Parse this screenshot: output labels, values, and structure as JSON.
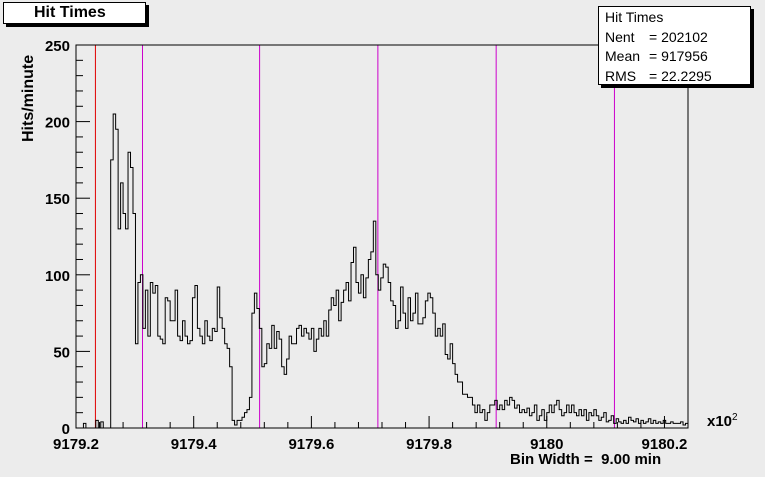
{
  "title": "Hit Times",
  "stats": {
    "name": "Hit Times",
    "rows": [
      {
        "key": "Nent",
        "value": "= 202102"
      },
      {
        "key": "Mean",
        "value": "= 917956"
      },
      {
        "key": "RMS",
        "value": "= 22.2295"
      }
    ]
  },
  "axis_note": {
    "x_scale": "x10",
    "x_exp": "2",
    "bin_width": "Bin Width =  9.00 min"
  },
  "chart_data": {
    "type": "histogram",
    "title": "Hit Times",
    "ylabel": "Hits/minute",
    "xlabel": "",
    "x_scale_factor": 100,
    "xlim": [
      9179.2,
      9180.24
    ],
    "ylim": [
      0,
      250
    ],
    "bin_width": 0.09,
    "x_ticks": [
      "9179.2",
      "9179.4",
      "9179.6",
      "9179.8",
      "9180",
      "9180.2"
    ],
    "y_ticks": [
      "0",
      "50",
      "100",
      "150",
      "200",
      "250"
    ],
    "x_tick_values": [
      9179.2,
      9179.4,
      9179.6,
      9179.8,
      9180.0,
      9180.2
    ],
    "y_tick_values": [
      0,
      50,
      100,
      150,
      200,
      250
    ],
    "vlines": [
      {
        "x": 9179.233,
        "color": "#e00000"
      },
      {
        "x": 9179.313,
        "color": "#cc00cc"
      },
      {
        "x": 9179.512,
        "color": "#cc00cc"
      },
      {
        "x": 9179.713,
        "color": "#cc00cc"
      },
      {
        "x": 9179.914,
        "color": "#cc00cc"
      },
      {
        "x": 9180.115,
        "color": "#cc00cc"
      }
    ],
    "x_start": 9179.2,
    "values": [
      0,
      0,
      0,
      3,
      0,
      0,
      0,
      0,
      5,
      0,
      4,
      0,
      0,
      0,
      175,
      205,
      195,
      130,
      160,
      140,
      130,
      180,
      170,
      140,
      55,
      95,
      100,
      65,
      90,
      60,
      95,
      88,
      93,
      60,
      58,
      55,
      85,
      83,
      70,
      70,
      90,
      60,
      57,
      70,
      60,
      55,
      57,
      85,
      93,
      65,
      60,
      55,
      70,
      60,
      57,
      65,
      63,
      92,
      72,
      65,
      55,
      52,
      40,
      5,
      2,
      5,
      5,
      7,
      10,
      12,
      20,
      75,
      88,
      78,
      65,
      40,
      42,
      55,
      52,
      67,
      52,
      63,
      58,
      40,
      35,
      45,
      60,
      55,
      55,
      65,
      67,
      60,
      65,
      62,
      58,
      65,
      50,
      58,
      65,
      60,
      70,
      60,
      77,
      85,
      80,
      90,
      70,
      82,
      90,
      95,
      83,
      108,
      118,
      95,
      88,
      100,
      85,
      98,
      110,
      115,
      135,
      100,
      90,
      98,
      107,
      105,
      95,
      83,
      80,
      65,
      70,
      92,
      75,
      65,
      85,
      70,
      75,
      88,
      68,
      68,
      72,
      83,
      88,
      85,
      75,
      60,
      65,
      60,
      68,
      48,
      45,
      55,
      42,
      35,
      30,
      30,
      22,
      22,
      20,
      20,
      15,
      10,
      15,
      10,
      12,
      5,
      10,
      15,
      15,
      18,
      12,
      15,
      12,
      18,
      15,
      20,
      18,
      13,
      15,
      10,
      12,
      10,
      13,
      8,
      10,
      15,
      5,
      8,
      12,
      5,
      10,
      15,
      10,
      15,
      18,
      12,
      8,
      10,
      15,
      10,
      15,
      10,
      8,
      12,
      8,
      12,
      5,
      10,
      8,
      12,
      8,
      5,
      7,
      10,
      4,
      5,
      8,
      3,
      6,
      4,
      3,
      5,
      3,
      7,
      5,
      4,
      6,
      3,
      5,
      3,
      4,
      6,
      3,
      5,
      3,
      4,
      3,
      5,
      3,
      3,
      4,
      3,
      3,
      3,
      4,
      2,
      3
    ],
    "grid": false,
    "legend": "top-right"
  },
  "colors": {
    "frame": "#000000",
    "background": "#ececec",
    "pad": "#ececec",
    "line": "#000000"
  }
}
